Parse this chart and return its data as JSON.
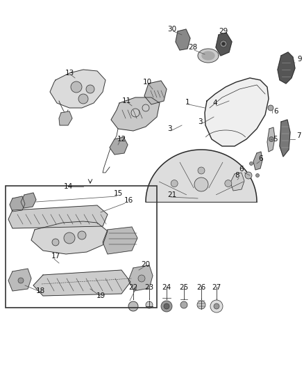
{
  "bg_color": "#ffffff",
  "line_color": "#2a2a2a",
  "part_fill": "#d0d0d0",
  "part_fill_dark": "#888888",
  "part_fill_light": "#e8e8e8",
  "label_color": "#111111",
  "figsize": [
    4.38,
    5.33
  ],
  "dpi": 100,
  "label_fontsize": 7.5,
  "callout_lw": 0.6,
  "part_lw": 0.7
}
